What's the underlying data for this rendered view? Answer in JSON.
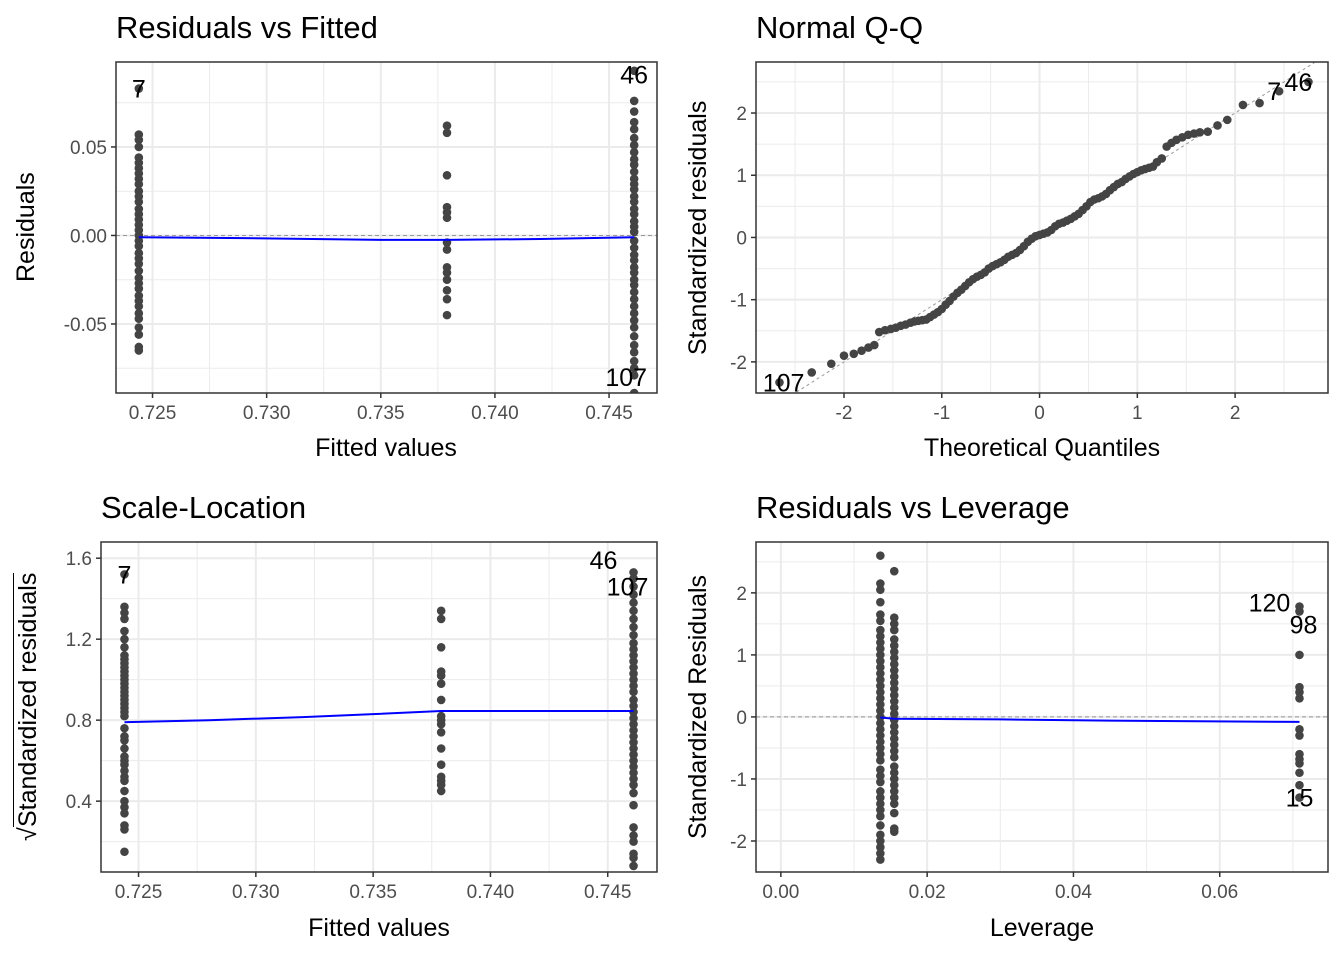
{
  "chart_data": [
    {
      "id": "p1",
      "type": "scatter",
      "title": "Residuals vs Fitted",
      "xlabel": "Fitted values",
      "ylabel": "Residuals",
      "xlim": [
        0.7234,
        0.7471
      ],
      "ylim": [
        -0.089,
        0.098
      ],
      "xticks": [
        0.725,
        0.73,
        0.735,
        0.74,
        0.745
      ],
      "xtick_labels": [
        "0.725",
        "0.730",
        "0.735",
        "0.740",
        "0.745"
      ],
      "yticks": [
        -0.05,
        0.0,
        0.05
      ],
      "ytick_labels": [
        "-0.05",
        "0.00",
        "0.05"
      ],
      "hline": 0,
      "smooth": [
        [
          0.7244,
          -0.001
        ],
        [
          0.729,
          -0.0015
        ],
        [
          0.735,
          -0.0025
        ],
        [
          0.7379,
          -0.0025
        ],
        [
          0.742,
          -0.002
        ],
        [
          0.7461,
          -0.001
        ]
      ],
      "groups": [
        {
          "x": 0.7244,
          "y": [
            0.057,
            0.054,
            0.05,
            0.044,
            0.041,
            0.038,
            0.035,
            0.032,
            0.029,
            0.025,
            0.022,
            0.019,
            0.015,
            0.012,
            0.009,
            0.006,
            0.003,
            0.0,
            -0.003,
            -0.006,
            -0.01,
            -0.013,
            -0.016,
            -0.02,
            -0.024,
            -0.027,
            -0.03,
            -0.034,
            -0.037,
            -0.04,
            -0.044,
            -0.047,
            -0.052,
            -0.056,
            -0.063,
            -0.065,
            0.083
          ]
        },
        {
          "x": 0.7379,
          "y": [
            0.062,
            0.058,
            0.034,
            0.016,
            0.013,
            0.01,
            -0.004,
            -0.008,
            -0.018,
            -0.021,
            -0.025,
            -0.031,
            -0.036,
            -0.045
          ]
        },
        {
          "x": 0.7461,
          "y": [
            0.076,
            0.07,
            0.064,
            0.06,
            0.055,
            0.051,
            0.047,
            0.043,
            0.04,
            0.036,
            0.032,
            0.029,
            0.026,
            0.022,
            0.019,
            0.015,
            0.012,
            0.008,
            0.005,
            0.002,
            -0.003,
            -0.007,
            -0.011,
            -0.014,
            -0.018,
            -0.021,
            -0.025,
            -0.028,
            -0.032,
            -0.036,
            -0.04,
            -0.044,
            -0.048,
            -0.052,
            -0.057,
            -0.062,
            -0.066,
            -0.071,
            -0.075,
            -0.079,
            0.093,
            -0.089
          ]
        }
      ],
      "labels": [
        {
          "text": "7",
          "x": 0.7244,
          "y": 0.083
        },
        {
          "text": "46",
          "x": 0.7461,
          "y": 0.091
        },
        {
          "text": "107",
          "x": 0.7461,
          "y": -0.08
        }
      ]
    },
    {
      "id": "p2",
      "type": "scatter",
      "title": "Normal Q-Q",
      "xlabel": "Theoretical Quantiles",
      "ylabel": "Standardized residuals",
      "xlim": [
        -2.9,
        2.95
      ],
      "ylim": [
        -2.5,
        2.82
      ],
      "xticks": [
        -2,
        -1,
        0,
        1,
        2
      ],
      "xtick_labels": [
        "-2",
        "-1",
        "0",
        "1",
        "2"
      ],
      "yticks": [
        -2,
        -1,
        0,
        1,
        2
      ],
      "ytick_labels": [
        "-2",
        "-1",
        "0",
        "1",
        "2"
      ],
      "refline": [
        [
          -2.9,
          -2.9
        ],
        [
          2.95,
          2.95
        ]
      ],
      "points": [
        [
          -2.66,
          -2.33
        ],
        [
          -2.33,
          -2.17
        ],
        [
          -2.13,
          -2.03
        ],
        [
          -2.0,
          -1.9
        ],
        [
          -1.9,
          -1.87
        ],
        [
          -1.82,
          -1.82
        ],
        [
          -1.75,
          -1.77
        ],
        [
          -1.69,
          -1.73
        ],
        [
          -1.64,
          -1.52
        ],
        [
          -1.58,
          -1.49
        ],
        [
          -1.52,
          -1.47
        ],
        [
          -1.47,
          -1.45
        ],
        [
          -1.42,
          -1.42
        ],
        [
          -1.37,
          -1.4
        ],
        [
          -1.32,
          -1.37
        ],
        [
          -1.28,
          -1.35
        ],
        [
          -1.24,
          -1.34
        ],
        [
          -1.2,
          -1.33
        ],
        [
          -1.16,
          -1.32
        ],
        [
          -1.12,
          -1.28
        ],
        [
          -1.08,
          -1.24
        ],
        [
          -1.04,
          -1.2
        ],
        [
          -1.0,
          -1.15
        ],
        [
          -0.96,
          -1.08
        ],
        [
          -0.92,
          -1.02
        ],
        [
          -0.88,
          -0.95
        ],
        [
          -0.84,
          -0.89
        ],
        [
          -0.8,
          -0.84
        ],
        [
          -0.76,
          -0.78
        ],
        [
          -0.72,
          -0.72
        ],
        [
          -0.68,
          -0.67
        ],
        [
          -0.64,
          -0.63
        ],
        [
          -0.6,
          -0.6
        ],
        [
          -0.56,
          -0.56
        ],
        [
          -0.52,
          -0.5
        ],
        [
          -0.48,
          -0.46
        ],
        [
          -0.44,
          -0.43
        ],
        [
          -0.4,
          -0.4
        ],
        [
          -0.36,
          -0.36
        ],
        [
          -0.32,
          -0.31
        ],
        [
          -0.28,
          -0.28
        ],
        [
          -0.24,
          -0.25
        ],
        [
          -0.2,
          -0.2
        ],
        [
          -0.16,
          -0.14
        ],
        [
          -0.12,
          -0.07
        ],
        [
          -0.08,
          -0.02
        ],
        [
          -0.04,
          0.02
        ],
        [
          0.0,
          0.04
        ],
        [
          0.04,
          0.06
        ],
        [
          0.08,
          0.08
        ],
        [
          0.12,
          0.12
        ],
        [
          0.16,
          0.18
        ],
        [
          0.2,
          0.22
        ],
        [
          0.24,
          0.24
        ],
        [
          0.28,
          0.27
        ],
        [
          0.32,
          0.3
        ],
        [
          0.36,
          0.34
        ],
        [
          0.4,
          0.38
        ],
        [
          0.44,
          0.44
        ],
        [
          0.48,
          0.5
        ],
        [
          0.52,
          0.57
        ],
        [
          0.56,
          0.61
        ],
        [
          0.6,
          0.63
        ],
        [
          0.64,
          0.66
        ],
        [
          0.68,
          0.7
        ],
        [
          0.72,
          0.76
        ],
        [
          0.76,
          0.81
        ],
        [
          0.8,
          0.86
        ],
        [
          0.84,
          0.89
        ],
        [
          0.88,
          0.94
        ],
        [
          0.92,
          0.98
        ],
        [
          0.96,
          1.02
        ],
        [
          1.0,
          1.05
        ],
        [
          1.04,
          1.08
        ],
        [
          1.08,
          1.1
        ],
        [
          1.12,
          1.12
        ],
        [
          1.16,
          1.14
        ],
        [
          1.2,
          1.21
        ],
        [
          1.25,
          1.27
        ],
        [
          1.3,
          1.46
        ],
        [
          1.35,
          1.52
        ],
        [
          1.4,
          1.57
        ],
        [
          1.46,
          1.61
        ],
        [
          1.52,
          1.65
        ],
        [
          1.58,
          1.67
        ],
        [
          1.64,
          1.69
        ],
        [
          1.72,
          1.7
        ],
        [
          1.82,
          1.8
        ],
        [
          1.92,
          1.89
        ],
        [
          2.08,
          2.13
        ],
        [
          2.25,
          2.16
        ],
        [
          2.45,
          2.35
        ],
        [
          2.75,
          2.5
        ]
      ],
      "labels": [
        {
          "text": "107",
          "x": -2.7,
          "y": -2.33
        },
        {
          "text": "7",
          "x": 2.4,
          "y": 2.35
        },
        {
          "text": "46",
          "x": 2.75,
          "y": 2.5
        }
      ]
    },
    {
      "id": "p3",
      "type": "scatter",
      "title": "Scale-Location",
      "xlabel": "Fitted values",
      "ylabel": "Standardized residuals",
      "ylabel_prefix": "√",
      "xlim": [
        0.7234,
        0.7471
      ],
      "ylim": [
        0.05,
        1.68
      ],
      "xticks": [
        0.725,
        0.73,
        0.735,
        0.74,
        0.745
      ],
      "xtick_labels": [
        "0.725",
        "0.730",
        "0.735",
        "0.740",
        "0.745"
      ],
      "yticks": [
        0.4,
        0.8,
        1.2,
        1.6
      ],
      "ytick_labels": [
        "0.4",
        "0.8",
        "1.2",
        "1.6"
      ],
      "smooth": [
        [
          0.7244,
          0.79
        ],
        [
          0.728,
          0.8
        ],
        [
          0.732,
          0.815
        ],
        [
          0.735,
          0.83
        ],
        [
          0.7379,
          0.845
        ],
        [
          0.7461,
          0.845
        ]
      ],
      "groups": [
        {
          "x": 0.7244,
          "y": [
            1.36,
            1.33,
            1.3,
            1.24,
            1.2,
            1.16,
            1.12,
            1.1,
            1.08,
            1.06,
            1.04,
            1.02,
            1.0,
            0.98,
            0.96,
            0.94,
            0.92,
            0.9,
            0.88,
            0.86,
            0.84,
            0.82,
            0.76,
            0.72,
            0.7,
            0.66,
            0.62,
            0.6,
            0.58,
            0.55,
            0.52,
            0.5,
            0.45,
            0.4,
            0.37,
            0.34,
            0.28,
            0.26,
            0.15,
            1.52
          ]
        },
        {
          "x": 0.7379,
          "y": [
            1.34,
            1.3,
            1.16,
            1.04,
            1.02,
            0.98,
            0.9,
            0.82,
            0.8,
            0.78,
            0.74,
            0.66,
            0.58,
            0.52,
            0.5,
            0.48,
            0.45
          ]
        },
        {
          "x": 0.7461,
          "y": [
            1.53,
            1.5,
            1.46,
            1.42,
            1.38,
            1.34,
            1.3,
            1.26,
            1.22,
            1.18,
            1.15,
            1.12,
            1.09,
            1.06,
            1.03,
            1.0,
            0.97,
            0.94,
            0.9,
            0.87,
            0.84,
            0.81,
            0.78,
            0.75,
            0.72,
            0.69,
            0.66,
            0.63,
            0.6,
            0.57,
            0.54,
            0.51,
            0.48,
            0.44,
            0.38,
            0.27,
            0.23,
            0.2,
            0.14,
            0.12,
            0.08
          ]
        }
      ],
      "labels": [
        {
          "text": "7",
          "x": 0.7244,
          "y": 1.52
        },
        {
          "text": "46",
          "x": 0.7461,
          "y": 1.6
        },
        {
          "text": "107",
          "x": 0.7461,
          "y": 1.5
        }
      ]
    },
    {
      "id": "p4",
      "type": "scatter",
      "title": "Residuals vs Leverage",
      "xlabel": "Leverage",
      "ylabel": "Standardized Residuals",
      "xlim": [
        -0.0034,
        0.0748
      ],
      "ylim": [
        -2.5,
        2.82
      ],
      "xticks": [
        0.0,
        0.02,
        0.04,
        0.06
      ],
      "xtick_labels": [
        "0.00",
        "0.02",
        "0.04",
        "0.06"
      ],
      "yticks": [
        -2,
        -1,
        0,
        1,
        2
      ],
      "ytick_labels": [
        "-2",
        "-1",
        "0",
        "1",
        "2"
      ],
      "hline": 0,
      "smooth": [
        [
          0.0136,
          -0.01
        ],
        [
          0.0155,
          -0.03
        ],
        [
          0.03,
          -0.04
        ],
        [
          0.045,
          -0.06
        ],
        [
          0.0709,
          -0.08
        ]
      ],
      "groups": [
        {
          "x": 0.0136,
          "y": [
            2.6,
            2.15,
            2.05,
            1.85,
            1.65,
            1.55,
            1.4,
            1.3,
            1.2,
            1.1,
            1.0,
            0.9,
            0.8,
            0.7,
            0.6,
            0.5,
            0.4,
            0.3,
            0.2,
            0.1,
            0.0,
            -0.1,
            -0.2,
            -0.3,
            -0.4,
            -0.5,
            -0.6,
            -0.7,
            -0.85,
            -0.95,
            -1.05,
            -1.2,
            -1.3,
            -1.4,
            -1.5,
            -1.6,
            -1.75,
            -1.9,
            -2.0,
            -2.1,
            -2.2,
            -2.3
          ]
        },
        {
          "x": 0.0155,
          "y": [
            2.35,
            1.6,
            1.5,
            1.4,
            1.25,
            1.15,
            1.05,
            0.95,
            0.85,
            0.75,
            0.65,
            0.55,
            0.45,
            0.35,
            0.25,
            0.15,
            0.05,
            -0.05,
            -0.15,
            -0.25,
            -0.35,
            -0.45,
            -0.55,
            -0.65,
            -0.8,
            -0.9,
            -1.0,
            -1.1,
            -1.2,
            -1.3,
            -1.4,
            -1.55,
            -1.8,
            -1.85
          ]
        },
        {
          "x": 0.0709,
          "y": [
            1.78,
            1.7,
            1.0,
            0.48,
            0.4,
            0.3,
            -0.2,
            -0.3,
            -0.6,
            -0.68,
            -0.75,
            -0.9,
            -1.1,
            -1.3
          ]
        }
      ],
      "labels": [
        {
          "text": "120",
          "x": 0.0709,
          "y": 1.78
        },
        {
          "text": "98",
          "x": 0.0709,
          "y": 1.65
        },
        {
          "text": "15",
          "x": 0.0709,
          "y": -1.3
        }
      ]
    }
  ],
  "colors": {
    "point": "#444444",
    "smooth": "#0000ff",
    "grid": "#ebebeb",
    "border": "#333333",
    "refline": "#999999",
    "tick_text": "#4d4d4d"
  }
}
